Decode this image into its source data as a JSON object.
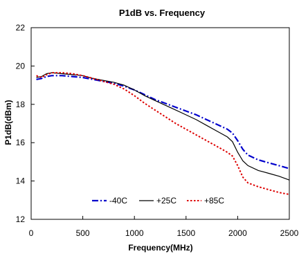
{
  "chart_data": {
    "type": "line",
    "title": "P1dB vs. Frequency",
    "xlabel": "Frequency(MHz)",
    "ylabel": "P1dB(dBm)",
    "xlim": [
      0,
      2500
    ],
    "ylim": [
      12,
      22
    ],
    "x_ticks": [
      0,
      500,
      1000,
      1500,
      2000,
      2500
    ],
    "x_tick_labels": [
      "0",
      "500",
      "1000",
      "1500",
      "2000",
      "2500"
    ],
    "y_ticks": [
      12,
      14,
      16,
      18,
      20,
      22
    ],
    "y_tick_labels": [
      "12",
      "14",
      "16",
      "18",
      "20",
      "22"
    ],
    "grid": false,
    "legend_position": "bottom-center",
    "series": [
      {
        "name": "-40C",
        "color": "#0000cc",
        "style": "dash-dot",
        "x": [
          50,
          100,
          150,
          200,
          300,
          400,
          500,
          600,
          700,
          800,
          900,
          1000,
          1100,
          1200,
          1300,
          1400,
          1500,
          1600,
          1700,
          1800,
          1900,
          1950,
          2000,
          2050,
          2100,
          2200,
          2300,
          2400,
          2500
        ],
        "y": [
          19.3,
          19.35,
          19.45,
          19.5,
          19.5,
          19.45,
          19.4,
          19.3,
          19.2,
          19.1,
          18.95,
          18.75,
          18.5,
          18.25,
          18.05,
          17.85,
          17.65,
          17.45,
          17.2,
          16.95,
          16.7,
          16.5,
          16.1,
          15.65,
          15.35,
          15.1,
          14.95,
          14.8,
          14.65
        ]
      },
      {
        "name": "+25C",
        "color": "#000000",
        "style": "solid",
        "x": [
          50,
          100,
          150,
          200,
          300,
          400,
          500,
          600,
          700,
          800,
          900,
          1000,
          1100,
          1200,
          1300,
          1400,
          1500,
          1600,
          1700,
          1800,
          1900,
          1950,
          2000,
          2050,
          2100,
          2200,
          2300,
          2400,
          2500
        ],
        "y": [
          19.4,
          19.45,
          19.6,
          19.65,
          19.6,
          19.55,
          19.5,
          19.35,
          19.25,
          19.15,
          19.0,
          18.75,
          18.45,
          18.2,
          17.95,
          17.7,
          17.45,
          17.2,
          16.9,
          16.6,
          16.3,
          16.05,
          15.5,
          15.05,
          14.8,
          14.55,
          14.4,
          14.25,
          14.05
        ]
      },
      {
        "name": "+85C",
        "color": "#dd0000",
        "style": "dotted",
        "x": [
          50,
          100,
          150,
          200,
          300,
          400,
          500,
          600,
          700,
          800,
          900,
          1000,
          1100,
          1200,
          1300,
          1400,
          1500,
          1600,
          1700,
          1800,
          1900,
          1950,
          2000,
          2050,
          2100,
          2200,
          2300,
          2400,
          2500
        ],
        "y": [
          19.5,
          19.4,
          19.55,
          19.65,
          19.65,
          19.6,
          19.5,
          19.35,
          19.2,
          19.05,
          18.8,
          18.45,
          18.05,
          17.7,
          17.35,
          17.0,
          16.7,
          16.4,
          16.1,
          15.8,
          15.5,
          15.3,
          14.8,
          14.2,
          13.9,
          13.7,
          13.55,
          13.4,
          13.3
        ]
      }
    ]
  }
}
